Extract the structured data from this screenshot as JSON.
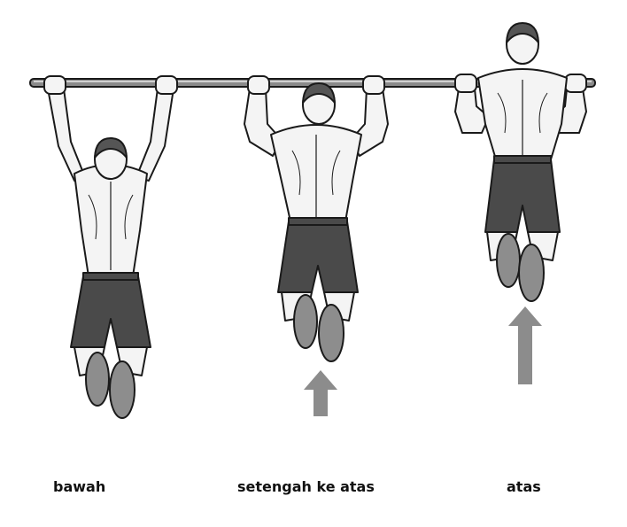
{
  "figure": {
    "stages": [
      {
        "label": "bawah"
      },
      {
        "label": "setengah ke atas"
      },
      {
        "label": "atas"
      }
    ]
  },
  "colors": {
    "bar": "#8a8a8a",
    "skin": "#f4f4f4",
    "outline": "#1a1a1a",
    "shorts": "#4a4a4a",
    "hair": "#555555",
    "shoes": "#8d8d8d",
    "arrow": "#8c8c8c"
  }
}
